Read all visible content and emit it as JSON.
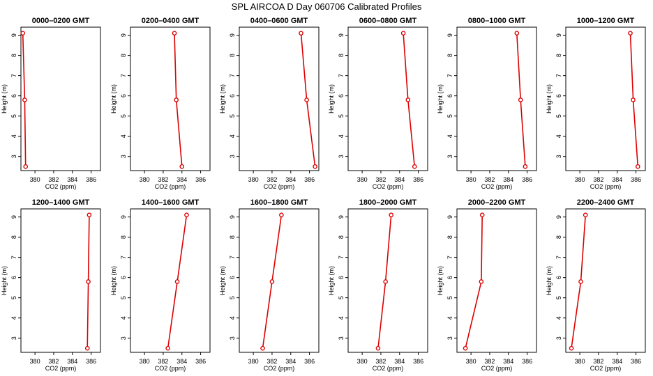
{
  "page": {
    "title": "SPL AIRCOA D  Day 060706  Calibrated Profiles"
  },
  "colors": {
    "series": "#dd0000",
    "axis": "#000000",
    "background": "#ffffff"
  },
  "chart_data": [
    {
      "type": "line",
      "title": "0000–0200 GMT",
      "xlabel": "CO2 (ppm)",
      "ylabel": "Height (m)",
      "xlim": [
        378.5,
        387
      ],
      "ylim": [
        2.3,
        9.4
      ],
      "xticks": [
        380,
        382,
        384,
        386
      ],
      "yticks": [
        3,
        4,
        5,
        6,
        7,
        8,
        9
      ],
      "grid": false,
      "series": [
        {
          "x": [
            378.7,
            378.9,
            379.0
          ],
          "y": [
            9.1,
            5.8,
            2.5
          ]
        }
      ]
    },
    {
      "type": "line",
      "title": "0200–0400 GMT",
      "xlabel": "CO2 (ppm)",
      "ylabel": "Height (m)",
      "xlim": [
        378.5,
        387
      ],
      "ylim": [
        2.3,
        9.4
      ],
      "xticks": [
        380,
        382,
        384,
        386
      ],
      "yticks": [
        3,
        4,
        5,
        6,
        7,
        8,
        9
      ],
      "grid": false,
      "series": [
        {
          "x": [
            383.2,
            383.4,
            384.0
          ],
          "y": [
            9.1,
            5.8,
            2.5
          ]
        }
      ]
    },
    {
      "type": "line",
      "title": "0400–0600 GMT",
      "xlabel": "CO2 (ppm)",
      "ylabel": "Height (m)",
      "xlim": [
        378.5,
        387
      ],
      "ylim": [
        2.3,
        9.4
      ],
      "xticks": [
        380,
        382,
        384,
        386
      ],
      "yticks": [
        3,
        4,
        5,
        6,
        7,
        8,
        9
      ],
      "grid": false,
      "series": [
        {
          "x": [
            385.1,
            385.7,
            386.6
          ],
          "y": [
            9.1,
            5.8,
            2.5
          ]
        }
      ]
    },
    {
      "type": "line",
      "title": "0600–0800 GMT",
      "xlabel": "CO2 (ppm)",
      "ylabel": "Height (m)",
      "xlim": [
        378.5,
        387
      ],
      "ylim": [
        2.3,
        9.4
      ],
      "xticks": [
        380,
        382,
        384,
        386
      ],
      "yticks": [
        3,
        4,
        5,
        6,
        7,
        8,
        9
      ],
      "grid": false,
      "series": [
        {
          "x": [
            384.4,
            384.9,
            385.6
          ],
          "y": [
            9.1,
            5.8,
            2.5
          ]
        }
      ]
    },
    {
      "type": "line",
      "title": "0800–1000 GMT",
      "xlabel": "CO2 (ppm)",
      "ylabel": "Height (m)",
      "xlim": [
        378.5,
        387
      ],
      "ylim": [
        2.3,
        9.4
      ],
      "xticks": [
        380,
        382,
        384,
        386
      ],
      "yticks": [
        3,
        4,
        5,
        6,
        7,
        8,
        9
      ],
      "grid": false,
      "series": [
        {
          "x": [
            384.9,
            385.3,
            385.8
          ],
          "y": [
            9.1,
            5.8,
            2.5
          ]
        }
      ]
    },
    {
      "type": "line",
      "title": "1000–1200 GMT",
      "xlabel": "CO2 (ppm)",
      "ylabel": "Height (m)",
      "xlim": [
        378.5,
        387
      ],
      "ylim": [
        2.3,
        9.4
      ],
      "xticks": [
        380,
        382,
        384,
        386
      ],
      "yticks": [
        3,
        4,
        5,
        6,
        7,
        8,
        9
      ],
      "grid": false,
      "series": [
        {
          "x": [
            385.4,
            385.7,
            386.2
          ],
          "y": [
            9.1,
            5.8,
            2.5
          ]
        }
      ]
    },
    {
      "type": "line",
      "title": "1200–1400 GMT",
      "xlabel": "CO2 (ppm)",
      "ylabel": "Height (m)",
      "xlim": [
        378.5,
        387
      ],
      "ylim": [
        2.3,
        9.4
      ],
      "xticks": [
        380,
        382,
        384,
        386
      ],
      "yticks": [
        3,
        4,
        5,
        6,
        7,
        8,
        9
      ],
      "grid": false,
      "series": [
        {
          "x": [
            385.8,
            385.7,
            385.6
          ],
          "y": [
            9.1,
            5.8,
            2.5
          ]
        }
      ]
    },
    {
      "type": "line",
      "title": "1400–1600 GMT",
      "xlabel": "CO2 (ppm)",
      "ylabel": "Height (m)",
      "xlim": [
        378.5,
        387
      ],
      "ylim": [
        2.3,
        9.4
      ],
      "xticks": [
        380,
        382,
        384,
        386
      ],
      "yticks": [
        3,
        4,
        5,
        6,
        7,
        8,
        9
      ],
      "grid": false,
      "series": [
        {
          "x": [
            384.5,
            383.5,
            382.5
          ],
          "y": [
            9.1,
            5.8,
            2.5
          ]
        }
      ]
    },
    {
      "type": "line",
      "title": "1600–1800 GMT",
      "xlabel": "CO2 (ppm)",
      "ylabel": "Height (m)",
      "xlim": [
        378.5,
        387
      ],
      "ylim": [
        2.3,
        9.4
      ],
      "xticks": [
        380,
        382,
        384,
        386
      ],
      "yticks": [
        3,
        4,
        5,
        6,
        7,
        8,
        9
      ],
      "grid": false,
      "series": [
        {
          "x": [
            383.0,
            382.0,
            381.0
          ],
          "y": [
            9.1,
            5.8,
            2.5
          ]
        }
      ]
    },
    {
      "type": "line",
      "title": "1800–2000 GMT",
      "xlabel": "CO2 (ppm)",
      "ylabel": "Height (m)",
      "xlim": [
        378.5,
        387
      ],
      "ylim": [
        2.3,
        9.4
      ],
      "xticks": [
        380,
        382,
        384,
        386
      ],
      "yticks": [
        3,
        4,
        5,
        6,
        7,
        8,
        9
      ],
      "grid": false,
      "series": [
        {
          "x": [
            383.1,
            382.5,
            381.7
          ],
          "y": [
            9.1,
            5.8,
            2.5
          ]
        }
      ]
    },
    {
      "type": "line",
      "title": "2000–2200 GMT",
      "xlabel": "CO2 (ppm)",
      "ylabel": "Height (m)",
      "xlim": [
        378.5,
        387
      ],
      "ylim": [
        2.3,
        9.4
      ],
      "xticks": [
        380,
        382,
        384,
        386
      ],
      "yticks": [
        3,
        4,
        5,
        6,
        7,
        8,
        9
      ],
      "grid": false,
      "series": [
        {
          "x": [
            381.2,
            381.1,
            379.4
          ],
          "y": [
            9.1,
            5.8,
            2.5
          ]
        }
      ]
    },
    {
      "type": "line",
      "title": "2200–2400 GMT",
      "xlabel": "CO2 (ppm)",
      "ylabel": "Height (m)",
      "xlim": [
        378.5,
        387
      ],
      "ylim": [
        2.3,
        9.4
      ],
      "xticks": [
        380,
        382,
        384,
        386
      ],
      "yticks": [
        3,
        4,
        5,
        6,
        7,
        8,
        9
      ],
      "grid": false,
      "series": [
        {
          "x": [
            380.6,
            380.1,
            379.1
          ],
          "y": [
            9.1,
            5.8,
            2.5
          ]
        }
      ]
    }
  ]
}
